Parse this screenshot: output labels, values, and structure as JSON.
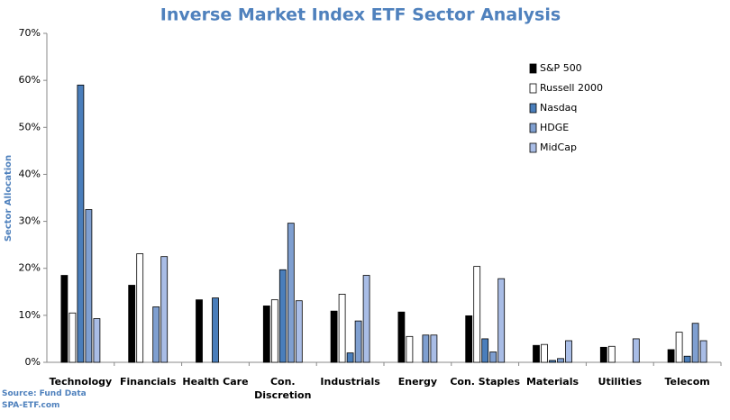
{
  "chart_data": {
    "type": "bar",
    "title": "Inverse Market Index ETF Sector Analysis",
    "y_label": "Sector Allocation",
    "source": [
      "Source: Fund Data",
      "SPA-ETF.com"
    ],
    "categories": [
      "Technology",
      "Financials",
      "Health Care",
      "Con. Discretion",
      "Industrials",
      "Energy",
      "Con. Staples",
      "Materials",
      "Utilities",
      "Telecom"
    ],
    "series": [
      {
        "name": "S&P 500",
        "color": "#000000",
        "values": [
          18.5,
          16.4,
          13.3,
          12,
          10.9,
          10.7,
          9.9,
          3.6,
          3.2,
          2.7
        ]
      },
      {
        "name": "Russell 2000",
        "color": "#ffffff",
        "values": [
          10.5,
          23.1,
          0,
          13.3,
          14.5,
          5.5,
          20.4,
          3.8,
          3.4,
          6.4
        ]
      },
      {
        "name": "Nasdaq",
        "color": "#4a7ebb",
        "values": [
          59,
          0,
          13.7,
          19.7,
          2,
          0,
          5,
          0.4,
          0,
          1.3
        ]
      },
      {
        "name": "HDGE",
        "color": "#7f9fd0",
        "values": [
          32.5,
          11.8,
          0,
          29.6,
          8.8,
          5.8,
          2.2,
          0.8,
          0,
          8.3
        ]
      },
      {
        "name": "MidCap",
        "color": "#a9bde6",
        "values": [
          9.3,
          22.5,
          0,
          13.1,
          18.5,
          5.8,
          17.8,
          4.6,
          5,
          4.6
        ]
      }
    ],
    "ylim": [
      0,
      70
    ],
    "yticks": [
      {
        "value": 0,
        "label": "0%"
      },
      {
        "value": 10,
        "label": "10%"
      },
      {
        "value": 20,
        "label": "20%"
      },
      {
        "value": 30,
        "label": "30%"
      },
      {
        "value": 40,
        "label": "40%"
      },
      {
        "value": 50,
        "label": "50%"
      },
      {
        "value": 60,
        "label": "60%"
      },
      {
        "value": 70,
        "label": "70%"
      }
    ],
    "legend": "upper-right",
    "grid": false
  }
}
